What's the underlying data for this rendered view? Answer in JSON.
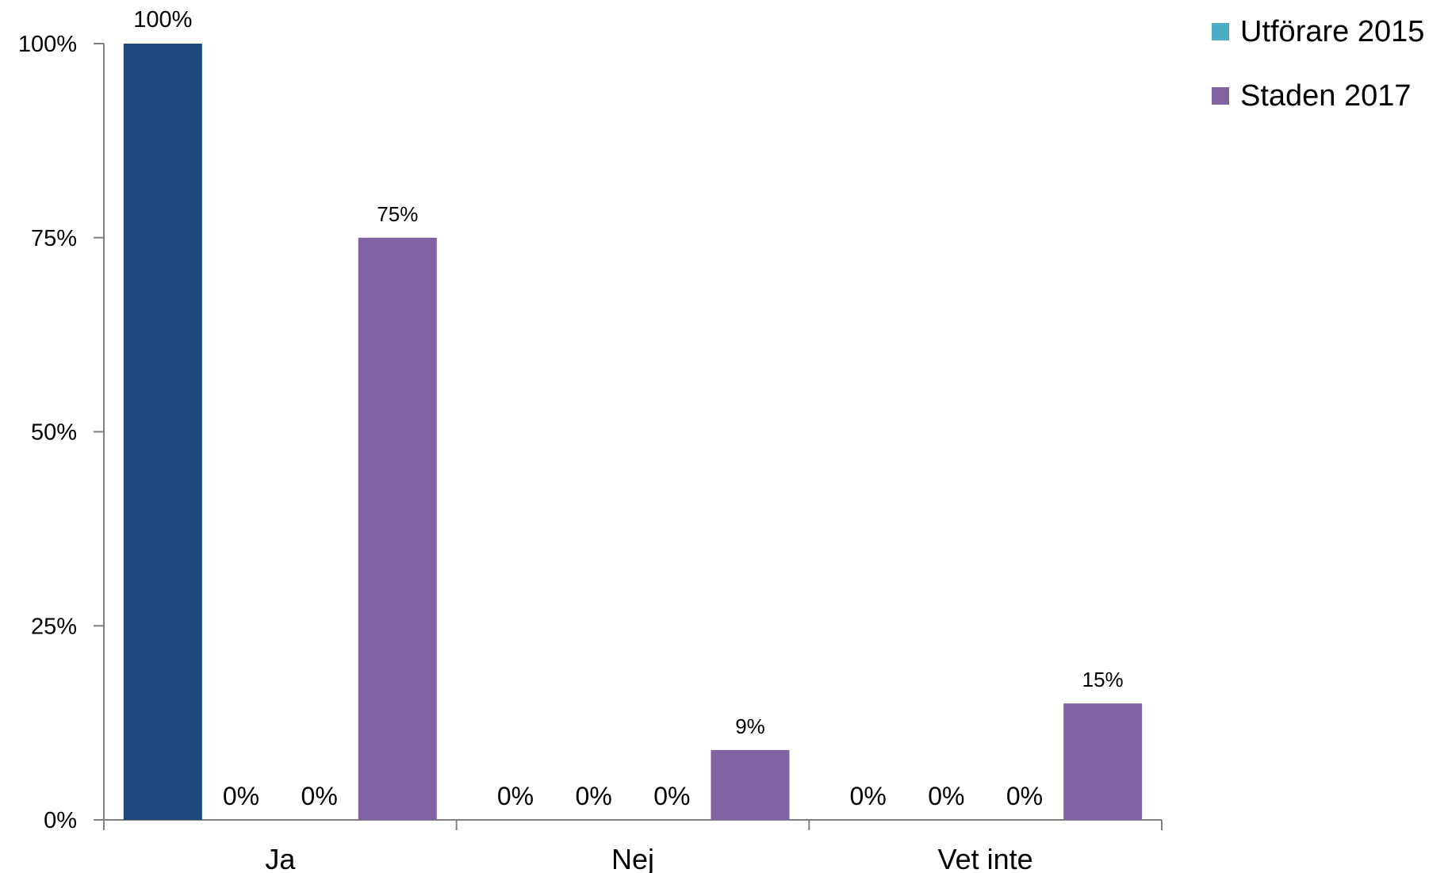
{
  "chart_data": {
    "type": "bar",
    "title": "",
    "categories": [
      "Ja",
      "Nej",
      "Vet inte"
    ],
    "series": [
      {
        "values": [
          100,
          0,
          0
        ],
        "color": "#1F497D",
        "labels": [
          "100%",
          "0%",
          "0%"
        ]
      },
      {
        "values": [
          0,
          0,
          0
        ],
        "color": "#F79646",
        "labels": [
          "0%",
          "0%",
          "0%"
        ]
      },
      {
        "name": "Utförare 2015",
        "values": [
          0,
          0,
          0
        ],
        "color": "#4BACC6",
        "labels": [
          "0%",
          "0%",
          "0%"
        ]
      },
      {
        "name": "Staden 2017",
        "values": [
          75,
          9,
          15
        ],
        "color": "#8064A2",
        "labels": [
          "75%",
          "9%",
          "15%"
        ]
      }
    ],
    "yticks": [
      0,
      25,
      50,
      75,
      100
    ],
    "ytick_labels": [
      "0%",
      "25%",
      "50%",
      "75%",
      "100%"
    ],
    "ylim": [
      0,
      100
    ],
    "xlabel": "",
    "ylabel": "",
    "grid": false,
    "legend": {
      "position": "top-right"
    }
  }
}
